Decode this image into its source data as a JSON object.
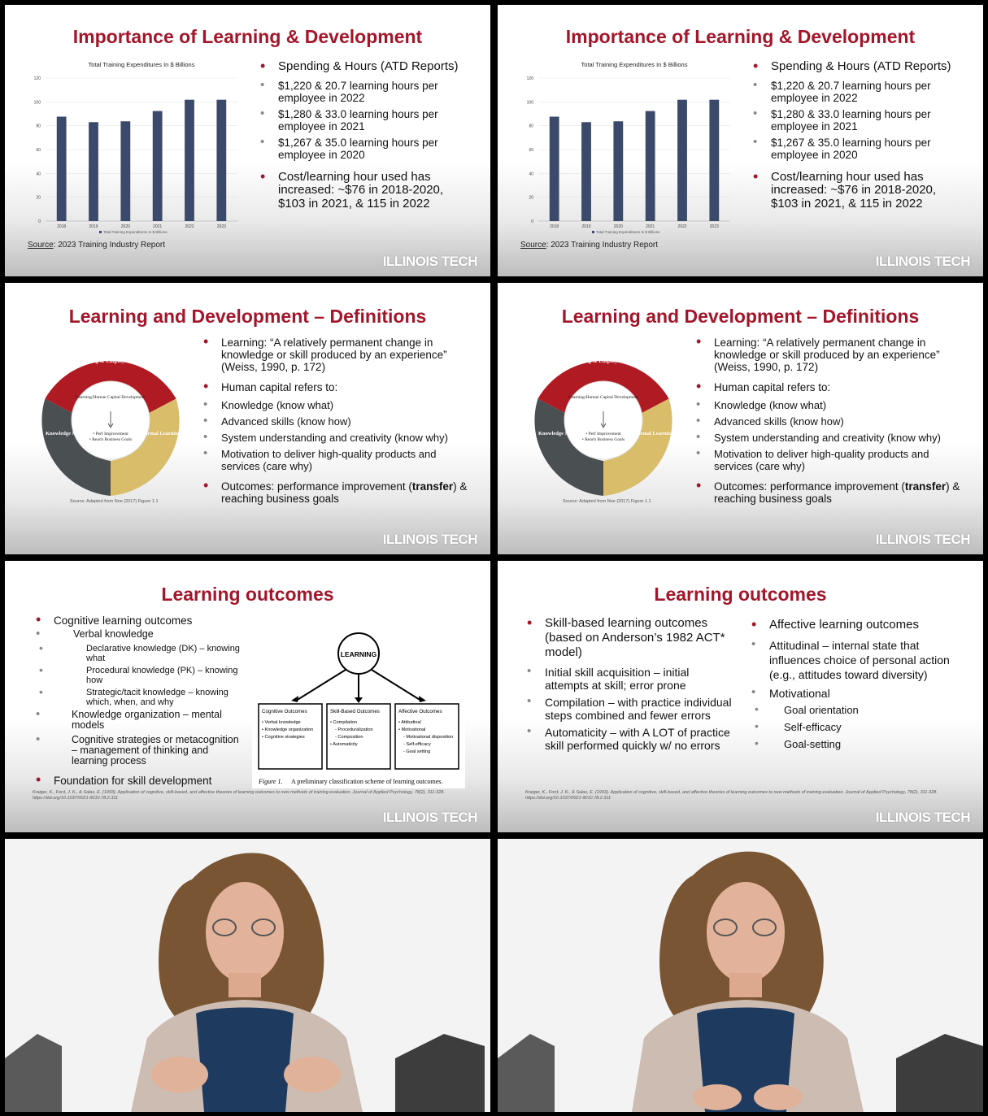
{
  "brand": "ILLINOIS TECH",
  "colors": {
    "brand_red": "#a3162a",
    "bar_navy": "#3b4a6b",
    "ring_red": "#b01a22",
    "ring_gold": "#d9bd6a",
    "ring_dark": "#4a4f52"
  },
  "slide1": {
    "title": "Importance of Learning & Development",
    "bullets": {
      "b1": "Spending & Hours (ATD Reports)",
      "b1a": "$1,220 & 20.7 learning hours per employee in 2022",
      "b1b": "$1,280 & 33.0 learning hours per employee in 2021",
      "b1c": "$1,267 & 35.0 learning hours per employee in 2020",
      "b2": "Cost/learning hour used has increased: ~$76 in 2018-2020, $103 in 2021, & 115 in 2022"
    },
    "source_label": "Source",
    "source_text": ": 2023 Training Industry Report"
  },
  "chart_data": {
    "type": "bar",
    "title": "Total Training Expenditures In $ Billions",
    "categories": [
      "2018",
      "2019",
      "2020",
      "2021",
      "2022",
      "2023"
    ],
    "series": [
      {
        "name": "Total Training Expenditures In $ Billions",
        "values": [
          87.6,
          83,
          83.7,
          92.3,
          101.8,
          101.8
        ]
      }
    ],
    "ylim": [
      0,
      120
    ],
    "yticks": [
      "0",
      "20",
      "40",
      "60",
      "80",
      "100",
      "120"
    ],
    "legend_position": "bottom",
    "grid": true
  },
  "slide2": {
    "title": "Learning and Development – Definitions",
    "bullets": {
      "b1": "Learning: “A relatively permanent change in knowledge or skill produced by an experience” (Weiss, 1990, p. 172)",
      "b2": "Human capital refers to:",
      "b2a": "Knowledge (know what)",
      "b2b": "Advanced skills (know how)",
      "b2c": "System understanding and creativity (know why)",
      "b2d": "Motivation to deliver high-quality products and services (care why)",
      "b3_pre": "Outcomes: performance improvement (",
      "b3_bold": "transfer",
      "b3_post": ") & reaching business goals"
    },
    "diagram": {
      "top": "Formal Training & Employee Development",
      "left": "Knowledge Management",
      "right": "Informal Learning",
      "center_top": "Learning/Human Capital Development",
      "center_b1": "• Perf Improvement",
      "center_b2": "• Reach Business Goals",
      "source": "Source: Adapted from Noe (2017) Figure 1.1"
    }
  },
  "slide3": {
    "title": "Learning outcomes",
    "bullets": {
      "b1": "Cognitive learning outcomes",
      "b1a": "Verbal knowledge",
      "b1a1": "Declarative knowledge (DK) – knowing what",
      "b1a2": "Procedural knowledge (PK) – knowing how",
      "b1a3": "Strategic/tacit knowledge – knowing which, when, and why",
      "b1b": "Knowledge organization – mental models",
      "b1c": "Cognitive strategies or metacognition – management of thinking and learning process",
      "b2": "Foundation for skill development"
    },
    "figure": {
      "root": "LEARNING",
      "box1_title": "Cognitive Outcomes",
      "box1_items": [
        "• Verbal knowledge",
        "• Knowledge organization",
        "• Cognitive strategies"
      ],
      "box2_title": "Skill-Based Outcomes",
      "box2_items": [
        "• Compilation",
        "  - Proceduralization",
        "  - Composition",
        "• Automaticity"
      ],
      "box3_title": "Affective Outcomes",
      "box3_items": [
        "• Attitudinal",
        "• Motivational",
        "  - Motivational disposition",
        "  - Self-efficacy",
        "  - Goal setting"
      ],
      "caption_label": "Figure 1.",
      "caption": "A preliminary classification scheme of learning outcomes."
    },
    "citation": "Kraiger, K., Ford, J. K., & Salas, E. (1993). Application of cognitive, skill-based, and affective theories of learning outcomes to new methods of training evaluation. Journal of Applied Psychology, 78(2), 311-328. https://doi.org/10.1037/0021-9010.78.2.311"
  },
  "slide4": {
    "title": "Learning outcomes",
    "left": {
      "b1": "Skill-based learning outcomes (based on Anderson’s 1982 ACT* model)",
      "b1a": "Initial skill acquisition – initial attempts at skill; error prone",
      "b1b": "Compilation – with practice individual steps combined and fewer errors",
      "b1c": "Automaticity – with A LOT of practice skill performed quickly w/ no errors"
    },
    "right": {
      "b1": "Affective learning outcomes",
      "b1a": " Attitudinal – internal state that influences choice of personal action (e.g., attitudes toward diversity)",
      "b1b": "Motivational",
      "b1b1": "Goal orientation",
      "b1b2": "Self-efficacy",
      "b1b3": "Goal-setting"
    }
  }
}
